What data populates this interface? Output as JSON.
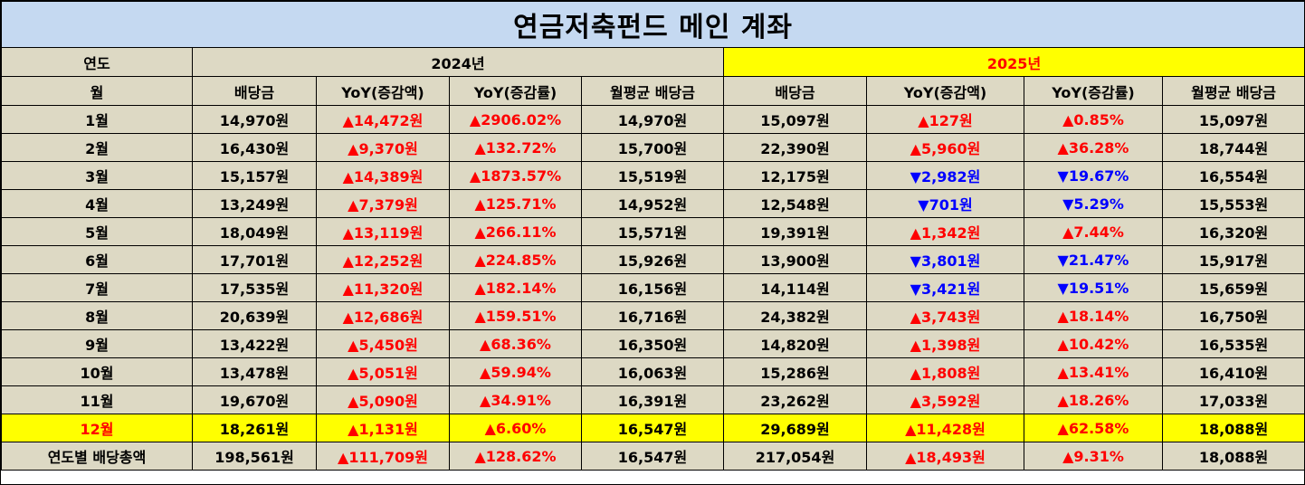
{
  "title": "연금저축펀드 메인 계좌",
  "header": {
    "year_label": "연도",
    "month_label": "월",
    "year_2024": "2024년",
    "year_2025": "2025년",
    "columns": [
      "배당금",
      "YoY(증감액)",
      "YoY(증감률)",
      "월평균 배당금"
    ]
  },
  "colors": {
    "title_bg": "#c5d9f1",
    "cell_bg": "#ddd9c4",
    "highlight": "#ffff00",
    "up": "#ff0000",
    "down": "#0000ff"
  },
  "rows": [
    {
      "label": "1월",
      "d24": "14,970원",
      "a24": "▲14,472원",
      "r24": "▲2906.02%",
      "m24": "14,970원",
      "d25": "15,097원",
      "a25": "▲127원",
      "r25": "▲0.85%",
      "m25": "15,097원"
    },
    {
      "label": "2월",
      "d24": "16,430원",
      "a24": "▲9,370원",
      "r24": "▲132.72%",
      "m24": "15,700원",
      "d25": "22,390원",
      "a25": "▲5,960원",
      "r25": "▲36.28%",
      "m25": "18,744원"
    },
    {
      "label": "3월",
      "d24": "15,157원",
      "a24": "▲14,389원",
      "r24": "▲1873.57%",
      "m24": "15,519원",
      "d25": "12,175원",
      "a25": "▼2,982원",
      "r25": "▼19.67%",
      "m25": "16,554원"
    },
    {
      "label": "4월",
      "d24": "13,249원",
      "a24": "▲7,379원",
      "r24": "▲125.71%",
      "m24": "14,952원",
      "d25": "12,548원",
      "a25": "▼701원",
      "r25": "▼5.29%",
      "m25": "15,553원"
    },
    {
      "label": "5월",
      "d24": "18,049원",
      "a24": "▲13,119원",
      "r24": "▲266.11%",
      "m24": "15,571원",
      "d25": "19,391원",
      "a25": "▲1,342원",
      "r25": "▲7.44%",
      "m25": "16,320원"
    },
    {
      "label": "6월",
      "d24": "17,701원",
      "a24": "▲12,252원",
      "r24": "▲224.85%",
      "m24": "15,926원",
      "d25": "13,900원",
      "a25": "▼3,801원",
      "r25": "▼21.47%",
      "m25": "15,917원"
    },
    {
      "label": "7월",
      "d24": "17,535원",
      "a24": "▲11,320원",
      "r24": "▲182.14%",
      "m24": "16,156원",
      "d25": "14,114원",
      "a25": "▼3,421원",
      "r25": "▼19.51%",
      "m25": "15,659원"
    },
    {
      "label": "8월",
      "d24": "20,639원",
      "a24": "▲12,686원",
      "r24": "▲159.51%",
      "m24": "16,716원",
      "d25": "24,382원",
      "a25": "▲3,743원",
      "r25": "▲18.14%",
      "m25": "16,750원"
    },
    {
      "label": "9월",
      "d24": "13,422원",
      "a24": "▲5,450원",
      "r24": "▲68.36%",
      "m24": "16,350원",
      "d25": "14,820원",
      "a25": "▲1,398원",
      "r25": "▲10.42%",
      "m25": "16,535원"
    },
    {
      "label": "10월",
      "d24": "13,478원",
      "a24": "▲5,051원",
      "r24": "▲59.94%",
      "m24": "16,063원",
      "d25": "15,286원",
      "a25": "▲1,808원",
      "r25": "▲13.41%",
      "m25": "16,410원"
    },
    {
      "label": "11월",
      "d24": "19,670원",
      "a24": "▲5,090원",
      "r24": "▲34.91%",
      "m24": "16,391원",
      "d25": "23,262원",
      "a25": "▲3,592원",
      "r25": "▲18.26%",
      "m25": "17,033원"
    },
    {
      "label": "12월",
      "d24": "18,261원",
      "a24": "▲1,131원",
      "r24": "▲6.60%",
      "m24": "16,547원",
      "d25": "29,689원",
      "a25": "▲11,428원",
      "r25": "▲62.58%",
      "m25": "18,088원"
    },
    {
      "label": "연도별 배당총액",
      "d24": "198,561원",
      "a24": "▲111,709원",
      "r24": "▲128.62%",
      "m24": "16,547원",
      "d25": "217,054원",
      "a25": "▲18,493원",
      "r25": "▲9.31%",
      "m25": "18,088원"
    }
  ]
}
